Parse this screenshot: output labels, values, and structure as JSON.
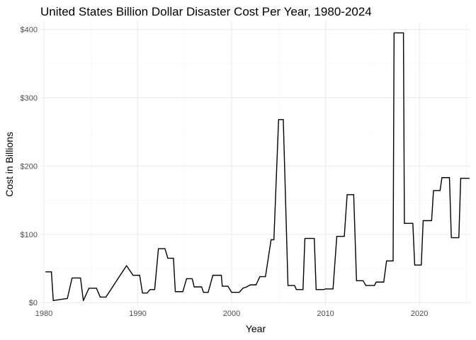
{
  "chart_data": {
    "type": "line",
    "title": "United States Billion Dollar Disaster Cost Per Year, 1980-2024",
    "xlabel": "Year",
    "ylabel": "Cost in Billions",
    "xlim": [
      1979.7,
      2025.5
    ],
    "ylim": [
      -5,
      412
    ],
    "x_ticks": [
      1980,
      1990,
      2000,
      2010,
      2020
    ],
    "x_tick_labels": [
      "1980",
      "1990",
      "2000",
      "2010",
      "2020"
    ],
    "y_ticks": [
      0,
      100,
      200,
      300,
      400
    ],
    "y_tick_labels": [
      "$0",
      "$100",
      "$200",
      "$300",
      "$400"
    ],
    "grid": true,
    "legend": "none",
    "series": [
      {
        "color": "#000000",
        "points": [
          [
            1980.2,
            45
          ],
          [
            1980.8,
            45
          ],
          [
            1981.0,
            3
          ],
          [
            1981.5,
            4
          ],
          [
            1982.0,
            5
          ],
          [
            1982.5,
            6
          ],
          [
            1983.0,
            36
          ],
          [
            1983.9,
            36
          ],
          [
            1984.2,
            3
          ],
          [
            1984.8,
            21
          ],
          [
            1985.6,
            21
          ],
          [
            1986.0,
            8
          ],
          [
            1986.6,
            8
          ],
          [
            1988.8,
            54
          ],
          [
            1989.5,
            40
          ],
          [
            1990.2,
            40
          ],
          [
            1990.5,
            14
          ],
          [
            1991.0,
            14
          ],
          [
            1991.3,
            19
          ],
          [
            1991.8,
            19
          ],
          [
            1992.2,
            79
          ],
          [
            1992.9,
            79
          ],
          [
            1993.2,
            65
          ],
          [
            1993.8,
            65
          ],
          [
            1994.0,
            16
          ],
          [
            1994.8,
            16
          ],
          [
            1995.2,
            35
          ],
          [
            1995.8,
            35
          ],
          [
            1996.0,
            23
          ],
          [
            1996.8,
            23
          ],
          [
            1997.0,
            15
          ],
          [
            1997.5,
            15
          ],
          [
            1998.0,
            40
          ],
          [
            1998.9,
            40
          ],
          [
            1999.0,
            24
          ],
          [
            1999.6,
            24
          ],
          [
            2000.0,
            15
          ],
          [
            2000.8,
            15
          ],
          [
            2001.2,
            21
          ],
          [
            2001.6,
            23
          ],
          [
            2002.0,
            26
          ],
          [
            2002.6,
            26
          ],
          [
            2003.0,
            38
          ],
          [
            2003.6,
            38
          ],
          [
            2004.2,
            92
          ],
          [
            2004.5,
            92
          ],
          [
            2005.0,
            268
          ],
          [
            2005.5,
            268
          ],
          [
            2006.0,
            25
          ],
          [
            2006.7,
            25
          ],
          [
            2006.9,
            19
          ],
          [
            2007.6,
            19
          ],
          [
            2007.8,
            94
          ],
          [
            2008.8,
            94
          ],
          [
            2009.0,
            19
          ],
          [
            2009.8,
            19
          ],
          [
            2010.0,
            20
          ],
          [
            2010.8,
            20
          ],
          [
            2011.2,
            97
          ],
          [
            2012.0,
            97
          ],
          [
            2012.3,
            158
          ],
          [
            2013.0,
            158
          ],
          [
            2013.3,
            32
          ],
          [
            2014.0,
            32
          ],
          [
            2014.3,
            25
          ],
          [
            2015.2,
            25
          ],
          [
            2015.4,
            30
          ],
          [
            2016.2,
            30
          ],
          [
            2016.5,
            61
          ],
          [
            2017.2,
            61
          ],
          [
            2017.3,
            395
          ],
          [
            2018.3,
            395
          ],
          [
            2018.4,
            116
          ],
          [
            2019.3,
            116
          ],
          [
            2019.5,
            55
          ],
          [
            2020.2,
            55
          ],
          [
            2020.4,
            120
          ],
          [
            2021.3,
            120
          ],
          [
            2021.5,
            164
          ],
          [
            2022.2,
            164
          ],
          [
            2022.4,
            183
          ],
          [
            2023.2,
            183
          ],
          [
            2023.4,
            95
          ],
          [
            2024.2,
            95
          ],
          [
            2024.4,
            182
          ],
          [
            2025.3,
            182
          ]
        ]
      }
    ]
  }
}
